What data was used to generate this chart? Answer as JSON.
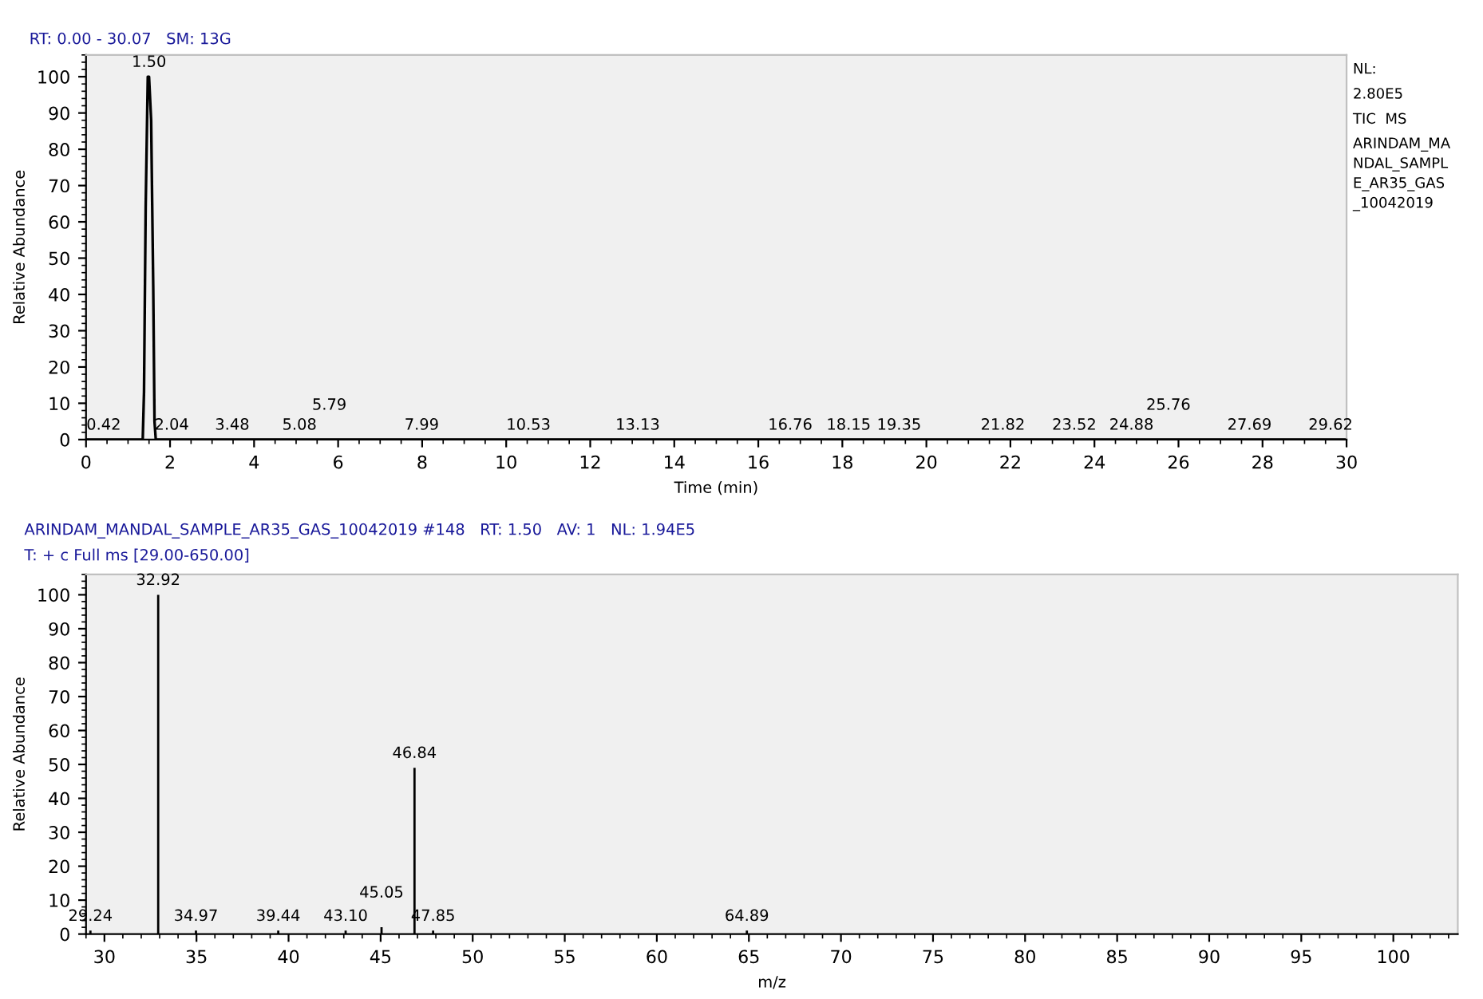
{
  "chart_data": [
    {
      "type": "line",
      "title": "RT: 0.00 - 30.07   SM: 13G",
      "xlabel": "Time (min)",
      "ylabel": "Relative Abundance",
      "series": [
        {
          "color": "#000000",
          "x": [
            0,
            1.35,
            1.38,
            1.42,
            1.47,
            1.5,
            1.55,
            1.6,
            1.63,
            1.66,
            30
          ],
          "values": [
            0,
            0,
            13,
            64,
            100,
            100,
            88,
            42,
            5,
            0,
            0
          ]
        }
      ],
      "xlim": [
        0,
        30
      ],
      "xticks": [
        0,
        2,
        4,
        6,
        8,
        10,
        12,
        14,
        16,
        18,
        20,
        22,
        24,
        26,
        28,
        30
      ],
      "ylim": [
        0,
        106
      ],
      "yticks": [
        0,
        10,
        20,
        30,
        40,
        50,
        60,
        70,
        80,
        90,
        100
      ],
      "grid": false,
      "legend": false,
      "marker": "none",
      "line_style": "solid",
      "annotations": [
        {
          "text": "1.50",
          "x": 1.5,
          "y": 100
        },
        {
          "text": "0.42",
          "x": 0.42,
          "y": 0
        },
        {
          "text": "2.04",
          "x": 2.04,
          "y": 0
        },
        {
          "text": "3.48",
          "x": 3.48,
          "y": 0
        },
        {
          "text": "5.08",
          "x": 5.08,
          "y": 0
        },
        {
          "text": "5.79",
          "x": 5.79,
          "y": 0
        },
        {
          "text": "7.99",
          "x": 7.99,
          "y": 0
        },
        {
          "text": "10.53",
          "x": 10.53,
          "y": 0
        },
        {
          "text": "13.13",
          "x": 13.13,
          "y": 0
        },
        {
          "text": "16.76",
          "x": 16.76,
          "y": 0
        },
        {
          "text": "18.15",
          "x": 18.15,
          "y": 0
        },
        {
          "text": "19.35",
          "x": 19.35,
          "y": 0
        },
        {
          "text": "21.82",
          "x": 21.82,
          "y": 0
        },
        {
          "text": "23.52",
          "x": 23.52,
          "y": 0
        },
        {
          "text": "24.88",
          "x": 24.88,
          "y": 0
        },
        {
          "text": "25.76",
          "x": 25.76,
          "y": 0
        },
        {
          "text": "27.69",
          "x": 27.69,
          "y": 0
        },
        {
          "text": "29.62",
          "x": 29.62,
          "y": 0
        },
        "NL:",
        "2.80E5",
        "TIC  MS",
        "ARINDAM_MANDAL_SAMPLE_AR35_GAS_10042019"
      ]
    },
    {
      "type": "bar",
      "title": "ARINDAM_MANDAL_SAMPLE_AR35_GAS_10042019 #148   RT: 1.50   AV: 1   NL: 1.94E5",
      "subtitle": "T: + c Full ms [29.00-650.00]",
      "xlabel": "m/z",
      "ylabel": "Relative Abundance",
      "x": [
        29.24,
        32.92,
        34.97,
        39.44,
        43.1,
        45.05,
        46.84,
        47.85,
        64.89
      ],
      "values": [
        1,
        100,
        1,
        1,
        1,
        2,
        49,
        1,
        1
      ],
      "annotations": [
        {
          "text": "29.24",
          "x": 29.24,
          "y": 1
        },
        {
          "text": "32.92",
          "x": 32.92,
          "y": 100
        },
        {
          "text": "34.97",
          "x": 34.97,
          "y": 1
        },
        {
          "text": "39.44",
          "x": 39.44,
          "y": 1
        },
        {
          "text": "43.10",
          "x": 43.1,
          "y": 1
        },
        {
          "text": "45.05",
          "x": 45.05,
          "y": 2
        },
        {
          "text": "46.84",
          "x": 46.84,
          "y": 49
        },
        {
          "text": "47.85",
          "x": 47.85,
          "y": 1
        },
        {
          "text": "64.89",
          "x": 64.89,
          "y": 1
        }
      ],
      "color": "#000000",
      "xlim": [
        29,
        103.5
      ],
      "xticks": [
        30,
        35,
        40,
        45,
        50,
        55,
        60,
        65,
        70,
        75,
        80,
        85,
        90,
        95,
        100
      ],
      "ylim": [
        0,
        106
      ],
      "yticks": [
        0,
        10,
        20,
        30,
        40,
        50,
        60,
        70,
        80,
        90,
        100
      ],
      "grid": false,
      "legend": false
    }
  ]
}
